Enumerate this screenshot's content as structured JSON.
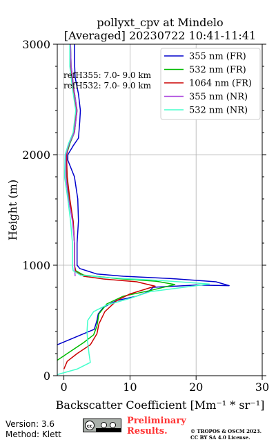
{
  "header": {
    "title_line1": "pollyxt_cpv at Mindelo",
    "title_line2": "[Averaged] 20230722 10:41-11:41"
  },
  "reference": {
    "line1": "refH355:  7.0- 9.0 km",
    "line2": "refH532:  7.0- 9.0 km"
  },
  "footer": {
    "version": "Version: 3.6",
    "method": "Method: Klett",
    "preliminary_line1": "Preliminary",
    "preliminary_line2": "Results.",
    "license_line1": "© TROPOS & OSCM 2023.",
    "license_line2": "CC BY SA 4.0 License."
  },
  "chart_data": {
    "type": "line",
    "xlabel": "Backscatter Coefficient [Mm⁻¹ * sr⁻¹]",
    "ylabel": "Height (m)",
    "xlim": [
      -1,
      30
    ],
    "ylim": [
      0,
      3000
    ],
    "xticks": [
      0,
      10,
      20,
      30
    ],
    "yticks": [
      0,
      1000,
      2000,
      3000
    ],
    "grid": true,
    "legend_position": "top-right",
    "series": [
      {
        "name": "355 nm (FR)",
        "color": "#0000cc",
        "points": [
          [
            -1,
            280
          ],
          [
            1,
            330
          ],
          [
            3,
            380
          ],
          [
            4.6,
            420
          ],
          [
            5,
            500
          ],
          [
            5.2,
            560
          ],
          [
            6,
            620
          ],
          [
            8,
            680
          ],
          [
            11,
            720
          ],
          [
            12.8,
            760
          ],
          [
            13.5,
            800
          ],
          [
            20,
            820
          ],
          [
            25,
            815
          ],
          [
            23,
            850
          ],
          [
            16,
            880
          ],
          [
            9,
            900
          ],
          [
            5,
            920
          ],
          [
            2.4,
            970
          ],
          [
            2,
            1000
          ],
          [
            2,
            1200
          ],
          [
            2.2,
            1400
          ],
          [
            2.1,
            1600
          ],
          [
            1.6,
            1800
          ],
          [
            0.6,
            1950
          ],
          [
            0.6,
            2000
          ],
          [
            1.4,
            2080
          ],
          [
            2.2,
            2150
          ],
          [
            2.4,
            2300
          ],
          [
            2.5,
            2400
          ],
          [
            2.2,
            2550
          ],
          [
            1.7,
            2700
          ],
          [
            1.6,
            2850
          ],
          [
            1.6,
            3000
          ]
        ]
      },
      {
        "name": "532 nm (FR)",
        "color": "#00bb00",
        "points": [
          [
            -1,
            140
          ],
          [
            1,
            220
          ],
          [
            3,
            300
          ],
          [
            4.5,
            370
          ],
          [
            5,
            450
          ],
          [
            5.3,
            560
          ],
          [
            6.5,
            650
          ],
          [
            9,
            720
          ],
          [
            13,
            770
          ],
          [
            16.8,
            825
          ],
          [
            14,
            855
          ],
          [
            8,
            880
          ],
          [
            3,
            910
          ],
          [
            1.8,
            950
          ],
          [
            1.6,
            1000
          ],
          [
            1.6,
            1200
          ],
          [
            1.4,
            1400
          ],
          [
            0.8,
            1600
          ],
          [
            0.4,
            1800
          ],
          [
            0.4,
            2000
          ],
          [
            0.9,
            2100
          ],
          [
            1.6,
            2200
          ],
          [
            2,
            2400
          ],
          [
            1.5,
            2600
          ],
          [
            1.1,
            2800
          ],
          [
            1,
            3000
          ]
        ]
      },
      {
        "name": "1064 nm (FR)",
        "color": "#cc0000",
        "points": [
          [
            0,
            60
          ],
          [
            0.5,
            130
          ],
          [
            2,
            200
          ],
          [
            4,
            280
          ],
          [
            5,
            380
          ],
          [
            5.3,
            470
          ],
          [
            6.2,
            580
          ],
          [
            8,
            680
          ],
          [
            10,
            740
          ],
          [
            13.8,
            810
          ],
          [
            11,
            850
          ],
          [
            6,
            875
          ],
          [
            3,
            900
          ],
          [
            1.8,
            940
          ],
          [
            1.6,
            1000
          ],
          [
            1.6,
            1200
          ],
          [
            1.4,
            1400
          ],
          [
            0.9,
            1600
          ],
          [
            0.5,
            1800
          ],
          [
            0.4,
            2000
          ],
          [
            0.8,
            2100
          ],
          [
            1.5,
            2200
          ],
          [
            1.9,
            2400
          ],
          [
            1.4,
            2600
          ],
          [
            1,
            2800
          ],
          [
            1,
            3000
          ]
        ]
      },
      {
        "name": "355 nm (NR)",
        "color": "#aa44dd",
        "points": [
          [
            1.7,
            900
          ],
          [
            1.6,
            1000
          ],
          [
            1.6,
            1200
          ],
          [
            1.3,
            1400
          ],
          [
            0.7,
            1600
          ],
          [
            0.3,
            1800
          ],
          [
            0.3,
            2000
          ],
          [
            0.8,
            2100
          ],
          [
            1.6,
            2200
          ],
          [
            2,
            2400
          ],
          [
            1.5,
            2600
          ],
          [
            1.1,
            2800
          ],
          [
            1,
            3000
          ]
        ]
      },
      {
        "name": "532 nm (NR)",
        "color": "#44ffcc",
        "points": [
          [
            -1,
            10
          ],
          [
            2,
            60
          ],
          [
            4,
            120
          ],
          [
            3.8,
            200
          ],
          [
            3.6,
            300
          ],
          [
            3.5,
            400
          ],
          [
            3.6,
            500
          ],
          [
            4.5,
            580
          ],
          [
            6.5,
            640
          ],
          [
            10,
            700
          ],
          [
            13,
            760
          ],
          [
            22,
            830
          ],
          [
            15,
            860
          ],
          [
            6,
            890
          ],
          [
            2.5,
            910
          ],
          [
            1.4,
            950
          ],
          [
            1.3,
            1000
          ],
          [
            1.3,
            1200
          ],
          [
            1,
            1400
          ],
          [
            0.6,
            1600
          ],
          [
            0.1,
            1800
          ],
          [
            0.2,
            2000
          ],
          [
            0.7,
            2100
          ],
          [
            1.4,
            2200
          ],
          [
            1.8,
            2400
          ],
          [
            1.3,
            2600
          ],
          [
            0.9,
            2800
          ],
          [
            0.9,
            3000
          ]
        ]
      }
    ]
  }
}
